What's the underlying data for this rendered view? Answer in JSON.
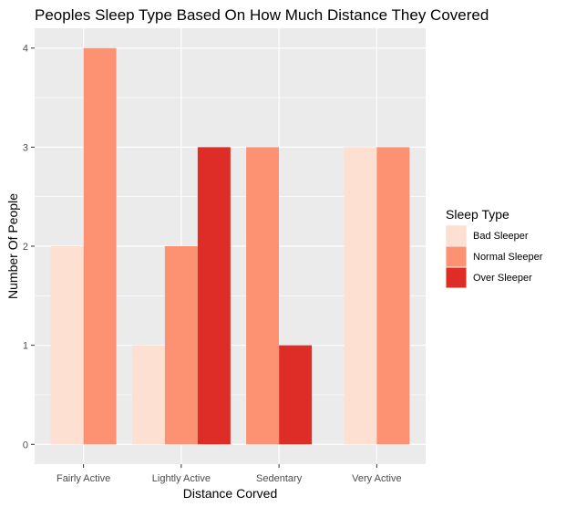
{
  "chart_data": {
    "type": "bar",
    "title": "Peoples Sleep Type Based On How Much Distance They Covered",
    "xlabel": "Distance Corved",
    "ylabel": "Number Of People",
    "categories": [
      "Fairly Active",
      "Lightly Active",
      "Sedentary",
      "Very Active"
    ],
    "y_ticks": [
      "0",
      "1",
      "2",
      "3",
      "4"
    ],
    "ylim": [
      -0.2,
      4.2
    ],
    "grid": true,
    "legend": {
      "title": "Sleep Type",
      "placement": "right"
    },
    "series": [
      {
        "name": "Bad Sleeper",
        "color": "#FEE0D2",
        "values": [
          2,
          1,
          null,
          3
        ]
      },
      {
        "name": "Normal Sleeper",
        "color": "#FC9272",
        "values": [
          4,
          2,
          3,
          3
        ]
      },
      {
        "name": "Over Sleeper",
        "color": "#DE2D26",
        "values": [
          null,
          3,
          1,
          null
        ]
      }
    ],
    "background": "#EBEBEB",
    "gridline_color": "#FFFFFF"
  }
}
